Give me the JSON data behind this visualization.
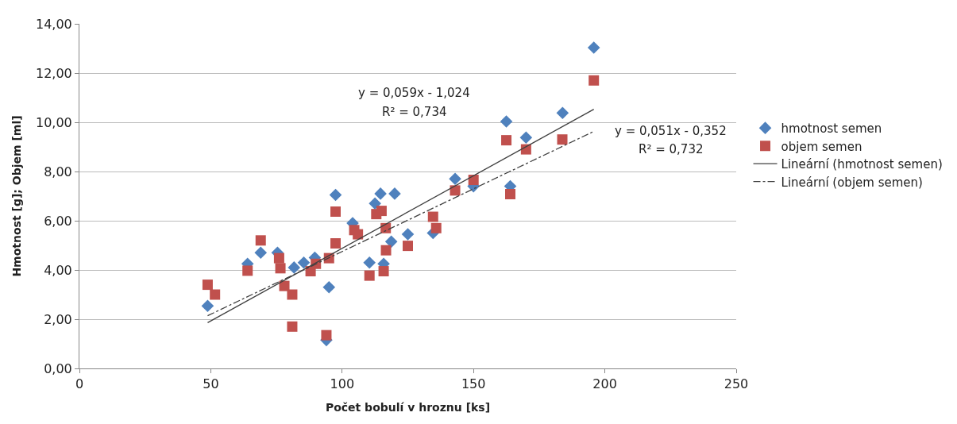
{
  "chart_data": {
    "type": "scatter",
    "xlabel": "Počet bobulí v hroznu [ks]",
    "ylabel": "Hmotnost [g]; Objem [ml]",
    "xlim": [
      0,
      250
    ],
    "ylim": [
      0,
      14
    ],
    "xticks": [
      0,
      50,
      100,
      150,
      200,
      250
    ],
    "yticks": [
      {
        "value": 0,
        "label": "0,00"
      },
      {
        "value": 2,
        "label": "2,00"
      },
      {
        "value": 4,
        "label": "4,00"
      },
      {
        "value": 6,
        "label": "6,00"
      },
      {
        "value": 8,
        "label": "8,00"
      },
      {
        "value": 10,
        "label": "10,00"
      },
      {
        "value": 12,
        "label": "12,00"
      },
      {
        "value": 14,
        "label": "14,00"
      }
    ],
    "grid": "y",
    "legend": "right",
    "series": [
      {
        "name": "hmotnost semen",
        "color": "#4f81bd",
        "marker": "diamond",
        "x": [
          48.8,
          64,
          69,
          97.5,
          95,
          94,
          114.6,
          120,
          112.5,
          104,
          125,
          118.7,
          110.4,
          115.8,
          134.6,
          143,
          81.7,
          89.6,
          85.4,
          75.4,
          195.8,
          183.9,
          162.5,
          170,
          150,
          164
        ],
        "values": [
          2.54,
          4.25,
          4.7,
          7.05,
          3.3,
          1.15,
          7.1,
          7.1,
          6.7,
          5.9,
          5.45,
          5.15,
          4.3,
          4.25,
          5.5,
          7.7,
          4.1,
          4.5,
          4.3,
          4.7,
          13.03,
          10.38,
          10.03,
          9.38,
          7.4,
          7.4
        ]
      },
      {
        "name": "objem semen",
        "color": "#c0504d",
        "marker": "square",
        "x": [
          48.8,
          51.6,
          64,
          69,
          76,
          76.5,
          78,
          81,
          81,
          88,
          90,
          95,
          97.5,
          97.5,
          94,
          104.6,
          106,
          110.4,
          115.8,
          113,
          116.6,
          115,
          116.7,
          125,
          134.6,
          135.8,
          143,
          150,
          195.8,
          162.5,
          170,
          183.8,
          164
        ],
        "values": [
          3.4,
          3.0,
          3.97,
          5.2,
          4.48,
          4.07,
          3.35,
          3.0,
          1.7,
          3.95,
          4.25,
          4.48,
          5.08,
          6.37,
          1.35,
          5.62,
          5.45,
          3.77,
          3.95,
          6.27,
          5.7,
          6.4,
          4.8,
          4.98,
          6.16,
          5.7,
          7.23,
          7.66,
          11.7,
          9.27,
          8.9,
          9.3,
          7.08
        ]
      },
      {
        "name": "Lineární (hmotnost semen)",
        "type": "line",
        "color": "#404040",
        "line_style": "solid",
        "marker": "none",
        "x": [
          48.8,
          195.8
        ],
        "values": [
          1.86,
          10.53
        ]
      },
      {
        "name": "Lineární (objem semen)",
        "type": "line",
        "color": "#404040",
        "line_style": "dashed",
        "marker": "none",
        "x": [
          48.8,
          195.8
        ],
        "values": [
          2.14,
          9.63
        ]
      }
    ],
    "annotations": [
      "y = 0,059x - 1,024",
      "R² = 0,734",
      "y = 0,051x - 0,352",
      "R² = 0,732"
    ]
  }
}
